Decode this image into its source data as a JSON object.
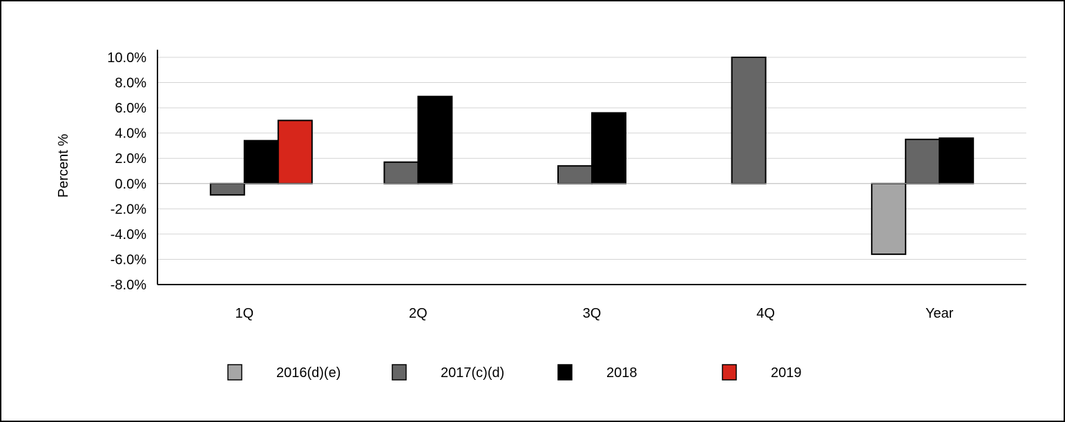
{
  "chart_data": {
    "type": "bar",
    "title": "",
    "xlabel": "",
    "ylabel": "Percent %",
    "ylim": [
      -8,
      10
    ],
    "ytick_step": 2,
    "ytick_format": "percent_1dp",
    "grid": true,
    "legend_position": "bottom",
    "categories": [
      "1Q",
      "2Q",
      "3Q",
      "4Q",
      "Year"
    ],
    "series": [
      {
        "name": "2016(d)(e)",
        "color": "#a6a6a6",
        "values": [
          null,
          null,
          null,
          null,
          -5.6
        ]
      },
      {
        "name": "2017(c)(d)",
        "color": "#666666",
        "values": [
          -0.9,
          1.7,
          1.4,
          10.0,
          3.5
        ]
      },
      {
        "name": "2018",
        "color": "#000000",
        "values": [
          3.4,
          6.9,
          5.6,
          null,
          3.6
        ]
      },
      {
        "name": "2019",
        "color": "#d7261b",
        "values": [
          5.0,
          null,
          null,
          null,
          null
        ]
      }
    ]
  }
}
